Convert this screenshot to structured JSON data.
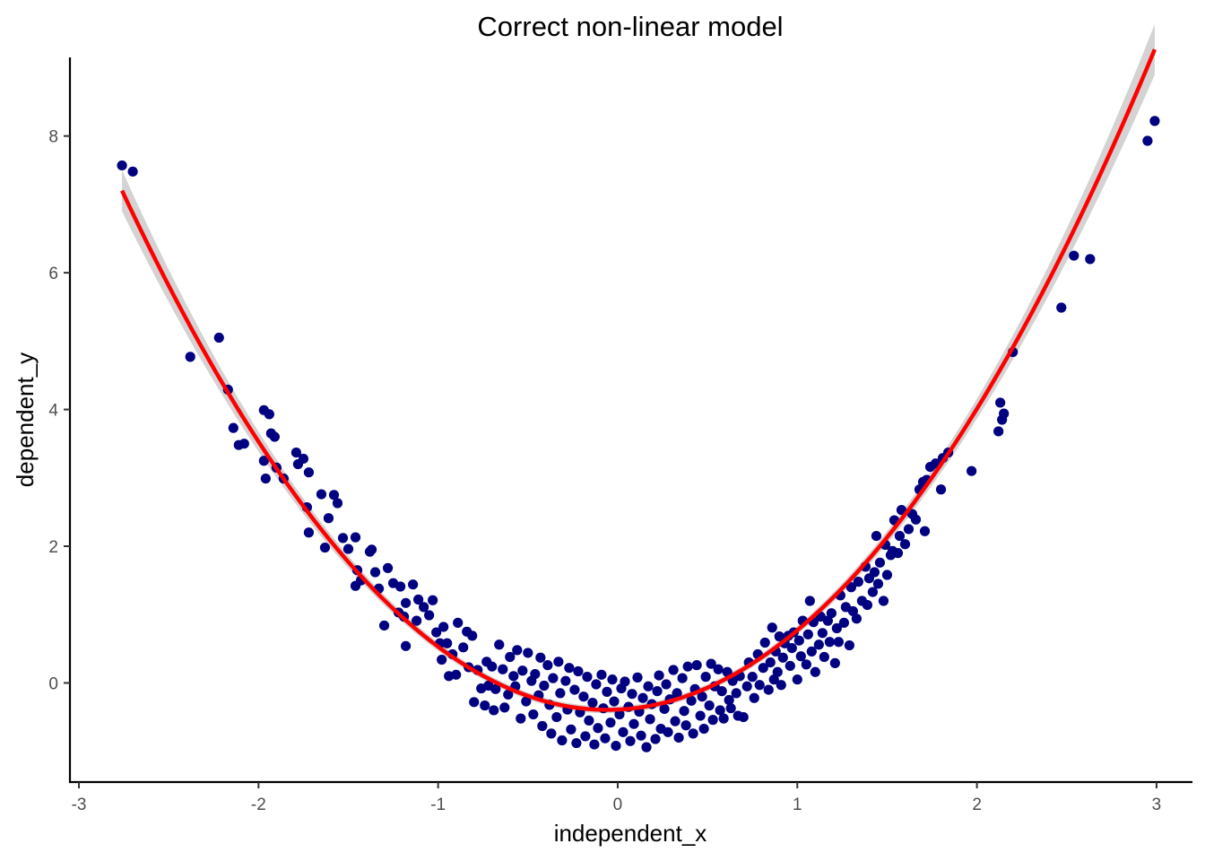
{
  "chart_data": {
    "type": "scatter",
    "title": "Correct non-linear model",
    "xlabel": "independent_x",
    "ylabel": "dependent_y",
    "xlim": [
      -3.05,
      3.2
    ],
    "ylim": [
      -1.45,
      9.15
    ],
    "x_ticks": [
      -3,
      -2,
      -1,
      0,
      1,
      2,
      3
    ],
    "y_ticks": [
      0,
      2,
      4,
      6,
      8
    ],
    "grid": false,
    "legend": "none",
    "point_color": "#000080",
    "fit_color": "#ff0000",
    "band_color": "#d3d3d3",
    "fit": {
      "type": "quadratic",
      "coefficients": {
        "a": 1.04,
        "b": 0.12,
        "c": -0.39
      },
      "x_range": [
        -2.76,
        2.99
      ]
    },
    "points": [
      {
        "x": -2.76,
        "y": 7.57
      },
      {
        "x": -2.7,
        "y": 7.48
      },
      {
        "x": -2.38,
        "y": 4.77
      },
      {
        "x": -2.22,
        "y": 5.05
      },
      {
        "x": -2.17,
        "y": 4.29
      },
      {
        "x": -2.14,
        "y": 3.73
      },
      {
        "x": -2.11,
        "y": 3.48
      },
      {
        "x": -2.08,
        "y": 3.5
      },
      {
        "x": -1.97,
        "y": 3.99
      },
      {
        "x": -1.97,
        "y": 3.25
      },
      {
        "x": -1.96,
        "y": 2.99
      },
      {
        "x": -1.94,
        "y": 3.93
      },
      {
        "x": -1.93,
        "y": 3.65
      },
      {
        "x": -1.91,
        "y": 3.6
      },
      {
        "x": -1.9,
        "y": 3.15
      },
      {
        "x": -1.86,
        "y": 2.99
      },
      {
        "x": -1.79,
        "y": 3.37
      },
      {
        "x": -1.78,
        "y": 3.2
      },
      {
        "x": -1.75,
        "y": 3.28
      },
      {
        "x": -1.72,
        "y": 3.08
      },
      {
        "x": -1.73,
        "y": 2.57
      },
      {
        "x": -1.72,
        "y": 2.2
      },
      {
        "x": -1.65,
        "y": 2.76
      },
      {
        "x": -1.63,
        "y": 1.98
      },
      {
        "x": -1.61,
        "y": 2.41
      },
      {
        "x": -1.58,
        "y": 2.75
      },
      {
        "x": -1.56,
        "y": 2.63
      },
      {
        "x": -1.53,
        "y": 2.12
      },
      {
        "x": -1.5,
        "y": 1.96
      },
      {
        "x": -1.46,
        "y": 2.13
      },
      {
        "x": -1.46,
        "y": 1.42
      },
      {
        "x": -1.45,
        "y": 1.65
      },
      {
        "x": -1.43,
        "y": 1.5
      },
      {
        "x": -1.38,
        "y": 1.92
      },
      {
        "x": -1.37,
        "y": 1.95
      },
      {
        "x": -1.35,
        "y": 1.62
      },
      {
        "x": -1.33,
        "y": 1.38
      },
      {
        "x": -1.3,
        "y": 0.84
      },
      {
        "x": -1.28,
        "y": 1.68
      },
      {
        "x": -1.25,
        "y": 1.46
      },
      {
        "x": -1.22,
        "y": 1.03
      },
      {
        "x": -1.21,
        "y": 1.41
      },
      {
        "x": -1.19,
        "y": 0.97
      },
      {
        "x": -1.18,
        "y": 1.17
      },
      {
        "x": -1.18,
        "y": 0.54
      },
      {
        "x": -1.14,
        "y": 1.44
      },
      {
        "x": -1.12,
        "y": 0.91
      },
      {
        "x": -1.11,
        "y": 1.22
      },
      {
        "x": -1.08,
        "y": 1.11
      },
      {
        "x": -1.05,
        "y": 0.99
      },
      {
        "x": -1.03,
        "y": 1.21
      },
      {
        "x": -1.01,
        "y": 0.74
      },
      {
        "x": -0.99,
        "y": 0.58
      },
      {
        "x": -0.98,
        "y": 0.34
      },
      {
        "x": -0.97,
        "y": 0.82
      },
      {
        "x": -0.95,
        "y": 0.58
      },
      {
        "x": -0.94,
        "y": 0.1
      },
      {
        "x": -0.92,
        "y": 0.42
      },
      {
        "x": -0.9,
        "y": 0.12
      },
      {
        "x": -0.89,
        "y": 0.88
      },
      {
        "x": -0.86,
        "y": 0.52
      },
      {
        "x": -0.84,
        "y": 0.75
      },
      {
        "x": -0.83,
        "y": 0.23
      },
      {
        "x": -0.81,
        "y": 0.69
      },
      {
        "x": -0.8,
        "y": -0.28
      },
      {
        "x": -0.78,
        "y": 0.19
      },
      {
        "x": -0.76,
        "y": -0.08
      },
      {
        "x": -0.74,
        "y": -0.33
      },
      {
        "x": -0.73,
        "y": 0.31
      },
      {
        "x": -0.72,
        "y": -0.04
      },
      {
        "x": -0.7,
        "y": 0.24
      },
      {
        "x": -0.69,
        "y": -0.4
      },
      {
        "x": -0.68,
        "y": -0.09
      },
      {
        "x": -0.66,
        "y": 0.56
      },
      {
        "x": -0.64,
        "y": 0.2
      },
      {
        "x": -0.63,
        "y": -0.36
      },
      {
        "x": -0.61,
        "y": -0.17
      },
      {
        "x": -0.6,
        "y": 0.38
      },
      {
        "x": -0.58,
        "y": 0.1
      },
      {
        "x": -0.57,
        "y": -0.05
      },
      {
        "x": -0.56,
        "y": 0.48
      },
      {
        "x": -0.54,
        "y": -0.52
      },
      {
        "x": -0.53,
        "y": 0.18
      },
      {
        "x": -0.51,
        "y": -0.27
      },
      {
        "x": -0.5,
        "y": 0.44
      },
      {
        "x": -0.48,
        "y": 0.03
      },
      {
        "x": -0.47,
        "y": -0.46
      },
      {
        "x": -0.46,
        "y": 0.13
      },
      {
        "x": -0.44,
        "y": -0.18
      },
      {
        "x": -0.43,
        "y": 0.37
      },
      {
        "x": -0.42,
        "y": -0.63
      },
      {
        "x": -0.41,
        "y": -0.04
      },
      {
        "x": -0.39,
        "y": 0.26
      },
      {
        "x": -0.38,
        "y": -0.32
      },
      {
        "x": -0.37,
        "y": -0.74
      },
      {
        "x": -0.36,
        "y": 0.07
      },
      {
        "x": -0.34,
        "y": -0.5
      },
      {
        "x": -0.33,
        "y": 0.31
      },
      {
        "x": -0.32,
        "y": -0.15
      },
      {
        "x": -0.31,
        "y": -0.84
      },
      {
        "x": -0.29,
        "y": 0.03
      },
      {
        "x": -0.28,
        "y": -0.39
      },
      {
        "x": -0.27,
        "y": 0.22
      },
      {
        "x": -0.26,
        "y": -0.68
      },
      {
        "x": -0.24,
        "y": -0.1
      },
      {
        "x": -0.23,
        "y": -0.88
      },
      {
        "x": -0.22,
        "y": 0.17
      },
      {
        "x": -0.21,
        "y": -0.43
      },
      {
        "x": -0.19,
        "y": -0.2
      },
      {
        "x": -0.18,
        "y": -0.78
      },
      {
        "x": -0.17,
        "y": 0.09
      },
      {
        "x": -0.16,
        "y": -0.55
      },
      {
        "x": -0.14,
        "y": -0.29
      },
      {
        "x": -0.13,
        "y": -0.9
      },
      {
        "x": -0.12,
        "y": -0.02
      },
      {
        "x": -0.11,
        "y": -0.66
      },
      {
        "x": -0.09,
        "y": 0.12
      },
      {
        "x": -0.08,
        "y": -0.37
      },
      {
        "x": -0.07,
        "y": -0.81
      },
      {
        "x": -0.06,
        "y": -0.13
      },
      {
        "x": -0.04,
        "y": -0.58
      },
      {
        "x": -0.03,
        "y": 0.05
      },
      {
        "x": -0.02,
        "y": -0.27
      },
      {
        "x": -0.01,
        "y": -0.92
      },
      {
        "x": 0.01,
        "y": -0.46
      },
      {
        "x": 0.02,
        "y": -0.08
      },
      {
        "x": 0.03,
        "y": -0.72
      },
      {
        "x": 0.04,
        "y": 0.02
      },
      {
        "x": 0.06,
        "y": -0.35
      },
      {
        "x": 0.07,
        "y": -0.85
      },
      {
        "x": 0.08,
        "y": -0.16
      },
      {
        "x": 0.09,
        "y": -0.6
      },
      {
        "x": 0.11,
        "y": 0.08
      },
      {
        "x": 0.12,
        "y": -0.42
      },
      {
        "x": 0.13,
        "y": -0.77
      },
      {
        "x": 0.14,
        "y": -0.22
      },
      {
        "x": 0.16,
        "y": -0.94
      },
      {
        "x": 0.17,
        "y": -0.05
      },
      {
        "x": 0.18,
        "y": -0.53
      },
      {
        "x": 0.19,
        "y": -0.31
      },
      {
        "x": 0.21,
        "y": -0.82
      },
      {
        "x": 0.22,
        "y": -0.12
      },
      {
        "x": 0.23,
        "y": 0.11
      },
      {
        "x": 0.24,
        "y": -0.67
      },
      {
        "x": 0.26,
        "y": -0.38
      },
      {
        "x": 0.27,
        "y": -0.02
      },
      {
        "x": 0.28,
        "y": -0.72
      },
      {
        "x": 0.29,
        "y": -0.24
      },
      {
        "x": 0.31,
        "y": 0.19
      },
      {
        "x": 0.32,
        "y": -0.56
      },
      {
        "x": 0.33,
        "y": -0.15
      },
      {
        "x": 0.34,
        "y": -0.8
      },
      {
        "x": 0.36,
        "y": 0.07
      },
      {
        "x": 0.37,
        "y": -0.41
      },
      {
        "x": 0.38,
        "y": -0.62
      },
      {
        "x": 0.39,
        "y": 0.24
      },
      {
        "x": 0.41,
        "y": -0.26
      },
      {
        "x": 0.42,
        "y": -0.74
      },
      {
        "x": 0.43,
        "y": -0.09
      },
      {
        "x": 0.44,
        "y": 0.26
      },
      {
        "x": 0.46,
        "y": -0.48
      },
      {
        "x": 0.47,
        "y": -0.2
      },
      {
        "x": 0.48,
        "y": -0.67
      },
      {
        "x": 0.49,
        "y": 0.09
      },
      {
        "x": 0.51,
        "y": -0.33
      },
      {
        "x": 0.52,
        "y": 0.28
      },
      {
        "x": 0.53,
        "y": -0.54
      },
      {
        "x": 0.54,
        "y": -0.05
      },
      {
        "x": 0.56,
        "y": 0.2
      },
      {
        "x": 0.57,
        "y": -0.4
      },
      {
        "x": 0.58,
        "y": -0.12
      },
      {
        "x": 0.59,
        "y": -0.52
      },
      {
        "x": 0.61,
        "y": 0.16
      },
      {
        "x": 0.62,
        "y": -0.25
      },
      {
        "x": 0.63,
        "y": -0.37
      },
      {
        "x": 0.64,
        "y": 0.03
      },
      {
        "x": 0.66,
        "y": -0.15
      },
      {
        "x": 0.67,
        "y": -0.48
      },
      {
        "x": 0.68,
        "y": 0.1
      },
      {
        "x": 0.7,
        "y": -0.5
      },
      {
        "x": 0.72,
        "y": -0.05
      },
      {
        "x": 0.73,
        "y": 0.3
      },
      {
        "x": 0.75,
        "y": 0.09
      },
      {
        "x": 0.76,
        "y": -0.22
      },
      {
        "x": 0.78,
        "y": 0.42
      },
      {
        "x": 0.79,
        "y": -0.03
      },
      {
        "x": 0.81,
        "y": 0.22
      },
      {
        "x": 0.82,
        "y": 0.59
      },
      {
        "x": 0.84,
        "y": -0.1
      },
      {
        "x": 0.85,
        "y": 0.3
      },
      {
        "x": 0.86,
        "y": 0.81
      },
      {
        "x": 0.87,
        "y": 0.05
      },
      {
        "x": 0.88,
        "y": 0.46
      },
      {
        "x": 0.89,
        "y": 0.16
      },
      {
        "x": 0.9,
        "y": 0.68
      },
      {
        "x": 0.91,
        "y": -0.03
      },
      {
        "x": 0.92,
        "y": 0.37
      },
      {
        "x": 0.93,
        "y": 0.58
      },
      {
        "x": 0.95,
        "y": 0.69
      },
      {
        "x": 0.96,
        "y": 0.25
      },
      {
        "x": 0.97,
        "y": 0.51
      },
      {
        "x": 0.98,
        "y": 0.74
      },
      {
        "x": 1.0,
        "y": 0.05
      },
      {
        "x": 1.01,
        "y": 0.62
      },
      {
        "x": 1.02,
        "y": 0.39
      },
      {
        "x": 1.03,
        "y": 0.91
      },
      {
        "x": 1.05,
        "y": 0.27
      },
      {
        "x": 1.06,
        "y": 0.71
      },
      {
        "x": 1.07,
        "y": 1.2
      },
      {
        "x": 1.08,
        "y": 0.46
      },
      {
        "x": 1.09,
        "y": 0.89
      },
      {
        "x": 1.1,
        "y": 0.16
      },
      {
        "x": 1.12,
        "y": 0.56
      },
      {
        "x": 1.13,
        "y": 0.97
      },
      {
        "x": 1.14,
        "y": 0.73
      },
      {
        "x": 1.15,
        "y": 0.38
      },
      {
        "x": 1.17,
        "y": 0.91
      },
      {
        "x": 1.18,
        "y": 0.6
      },
      {
        "x": 1.19,
        "y": 1.02
      },
      {
        "x": 1.21,
        "y": 0.29
      },
      {
        "x": 1.22,
        "y": 0.8
      },
      {
        "x": 1.23,
        "y": 0.6
      },
      {
        "x": 1.24,
        "y": 1.28
      },
      {
        "x": 1.26,
        "y": 0.88
      },
      {
        "x": 1.27,
        "y": 1.11
      },
      {
        "x": 1.29,
        "y": 0.55
      },
      {
        "x": 1.3,
        "y": 1.4
      },
      {
        "x": 1.31,
        "y": 1.05
      },
      {
        "x": 1.33,
        "y": 0.94
      },
      {
        "x": 1.34,
        "y": 1.48
      },
      {
        "x": 1.36,
        "y": 1.2
      },
      {
        "x": 1.38,
        "y": 1.7
      },
      {
        "x": 1.39,
        "y": 1.14
      },
      {
        "x": 1.4,
        "y": 1.53
      },
      {
        "x": 1.42,
        "y": 1.33
      },
      {
        "x": 1.43,
        "y": 1.62
      },
      {
        "x": 1.44,
        "y": 2.15
      },
      {
        "x": 1.45,
        "y": 1.45
      },
      {
        "x": 1.46,
        "y": 1.76
      },
      {
        "x": 1.48,
        "y": 1.2
      },
      {
        "x": 1.49,
        "y": 2.02
      },
      {
        "x": 1.5,
        "y": 1.58
      },
      {
        "x": 1.52,
        "y": 1.87
      },
      {
        "x": 1.53,
        "y": 1.93
      },
      {
        "x": 1.54,
        "y": 2.38
      },
      {
        "x": 1.56,
        "y": 1.9
      },
      {
        "x": 1.57,
        "y": 2.15
      },
      {
        "x": 1.58,
        "y": 2.53
      },
      {
        "x": 1.6,
        "y": 2.03
      },
      {
        "x": 1.62,
        "y": 2.25
      },
      {
        "x": 1.64,
        "y": 2.47
      },
      {
        "x": 1.66,
        "y": 2.39
      },
      {
        "x": 1.68,
        "y": 2.83
      },
      {
        "x": 1.7,
        "y": 2.94
      },
      {
        "x": 1.71,
        "y": 2.22
      },
      {
        "x": 1.72,
        "y": 2.97
      },
      {
        "x": 1.74,
        "y": 3.16
      },
      {
        "x": 1.77,
        "y": 3.21
      },
      {
        "x": 1.8,
        "y": 2.83
      },
      {
        "x": 1.81,
        "y": 3.29
      },
      {
        "x": 1.84,
        "y": 3.37
      },
      {
        "x": 1.97,
        "y": 3.1
      },
      {
        "x": 2.12,
        "y": 3.68
      },
      {
        "x": 2.13,
        "y": 4.1
      },
      {
        "x": 2.14,
        "y": 3.85
      },
      {
        "x": 2.15,
        "y": 3.94
      },
      {
        "x": 2.2,
        "y": 4.84
      },
      {
        "x": 2.47,
        "y": 5.49
      },
      {
        "x": 2.54,
        "y": 6.25
      },
      {
        "x": 2.63,
        "y": 6.2
      },
      {
        "x": 2.95,
        "y": 7.93
      },
      {
        "x": 2.99,
        "y": 8.22
      }
    ]
  }
}
